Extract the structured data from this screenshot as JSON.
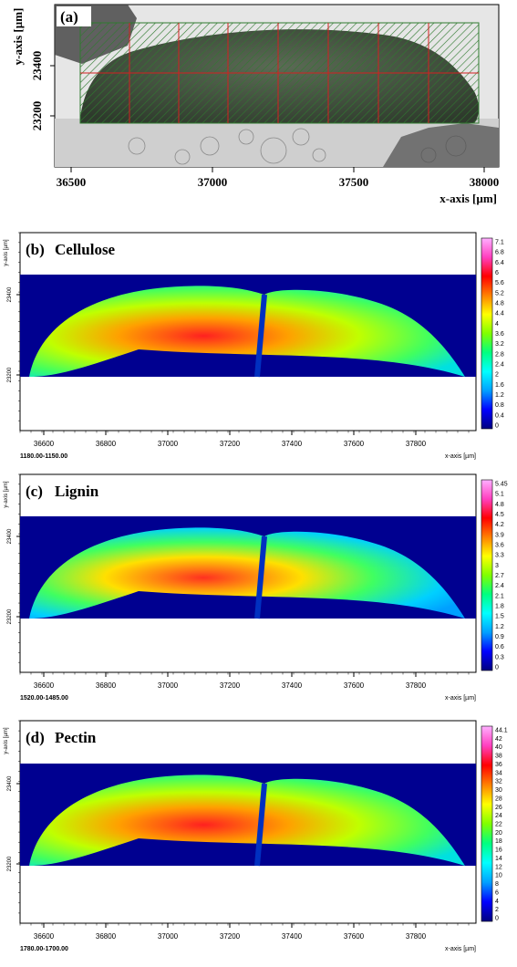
{
  "panel_a": {
    "label": "(a)",
    "xlabel": "x-axis [µm]",
    "ylabel": "y-axis [µm]",
    "xticks": [
      "36500",
      "37000",
      "37500",
      "38000"
    ],
    "yticks": [
      "23200",
      "23400"
    ]
  },
  "maps": [
    {
      "label": "(b)",
      "title": "Cellulose",
      "ylabel": "y-axis [µm]",
      "xlabel": "x-axis [µm]",
      "yticks": [
        "23200",
        "23400"
      ],
      "xticks": [
        "36600",
        "36800",
        "37000",
        "37200",
        "37400",
        "37600",
        "37800"
      ],
      "range_label": "1180.00-1150.00",
      "colorbar_ticks": [
        "7.1",
        "6.8",
        "6.4",
        "6",
        "5.6",
        "5.2",
        "4.8",
        "4.4",
        "4",
        "3.6",
        "3.2",
        "2.8",
        "2.4",
        "2",
        "1.6",
        "1.2",
        "0.8",
        "0.4",
        "0"
      ]
    },
    {
      "label": "(c)",
      "title": "Lignin",
      "ylabel": "y-axis [µm]",
      "xlabel": "x-axis [µm]",
      "yticks": [
        "23200",
        "23400"
      ],
      "xticks": [
        "36600",
        "36800",
        "37000",
        "37200",
        "37400",
        "37600",
        "37800"
      ],
      "range_label": "1520.00-1485.00",
      "colorbar_ticks": [
        "5.45",
        "5.1",
        "4.8",
        "4.5",
        "4.2",
        "3.9",
        "3.6",
        "3.3",
        "3",
        "2.7",
        "2.4",
        "2.1",
        "1.8",
        "1.5",
        "1.2",
        "0.9",
        "0.6",
        "0.3",
        "0"
      ]
    },
    {
      "label": "(d)",
      "title": "Pectin",
      "ylabel": "y-axis [µm]",
      "xlabel": "x-axis [µm]",
      "yticks": [
        "23200",
        "23400"
      ],
      "xticks": [
        "36600",
        "36800",
        "37000",
        "37200",
        "37400",
        "37600",
        "37800"
      ],
      "range_label": "1780.00-1700.00",
      "colorbar_ticks": [
        "44.1",
        "42",
        "40",
        "38",
        "36",
        "34",
        "32",
        "30",
        "28",
        "26",
        "24",
        "22",
        "20",
        "18",
        "16",
        "14",
        "12",
        "10",
        "8",
        "6",
        "4",
        "2",
        "0"
      ]
    }
  ]
}
